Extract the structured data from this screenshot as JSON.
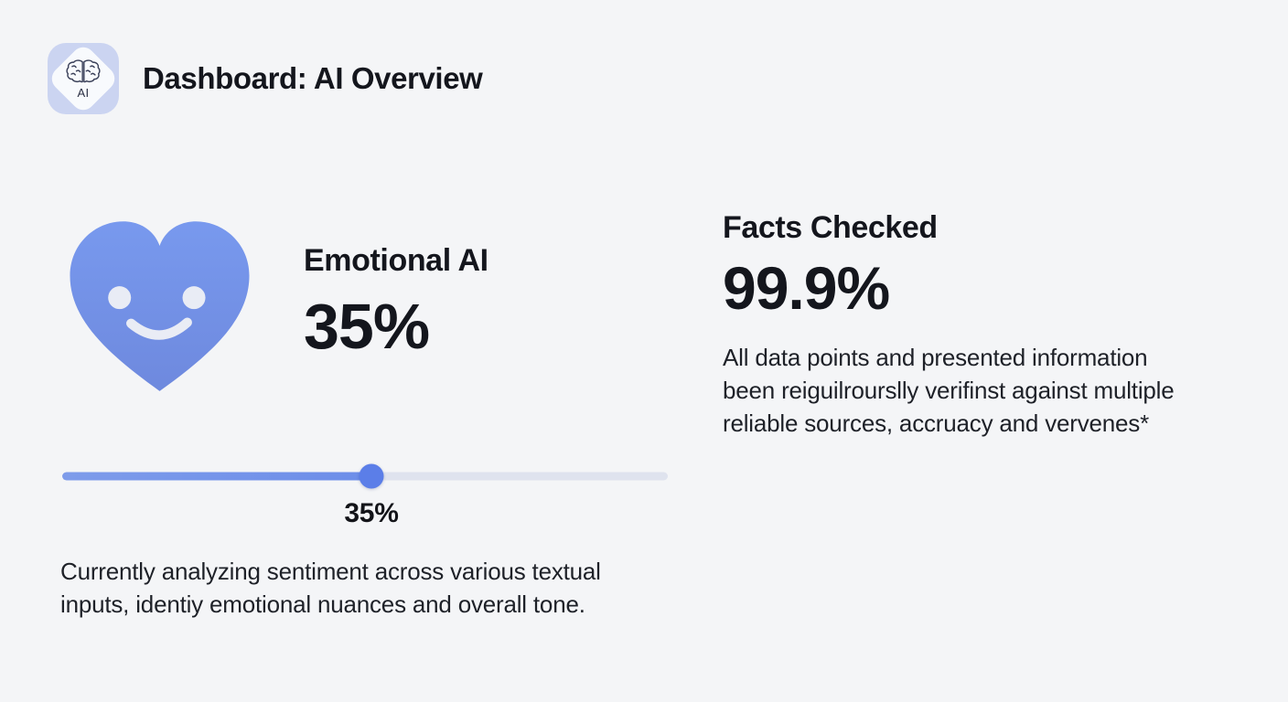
{
  "colors": {
    "background": "#f4f5f7",
    "heading_text": "#14161d",
    "body_text": "#1e2128",
    "heart_blue_top": "#7899ee",
    "heart_blue_bottom": "#6e89de",
    "heart_face": "#e9ecf5",
    "slider_fill": "#6d8ee9",
    "slider_track": "#dfe3ee",
    "slider_thumb": "#5b7ee8",
    "app_icon_bg": "#cbd4f1"
  },
  "header": {
    "title": "Dashboard: AI Overview",
    "app_icon_label": "AI"
  },
  "emotional_ai": {
    "title": "Emotional AI",
    "value": "35%",
    "slider": {
      "value_label": "35%",
      "visual_position_pct": 51
    },
    "description": "Currently analyzing sentiment across various textual\ninputs, identiy emotional nuances and overall tone."
  },
  "facts_checked": {
    "title": "Facts Checked",
    "value": "99.9%",
    "description": "All data points and presented information\nbeen reiguilrourslly verifinst against multiple\nreliable sources, accruacy and vervenes*"
  }
}
